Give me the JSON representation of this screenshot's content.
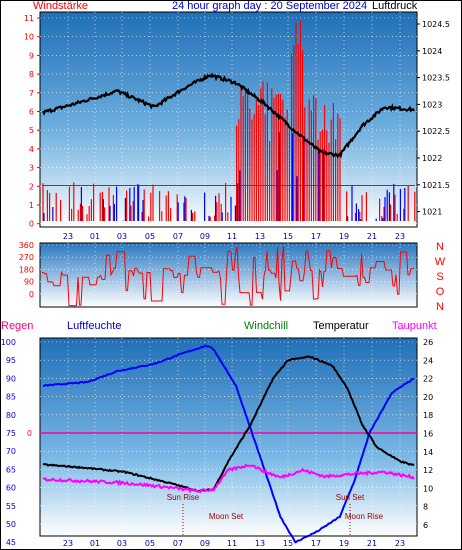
{
  "header": {
    "left_label": "Windstärke",
    "title": "24 hour graph day : 20 September 2024",
    "right_label": "Luftdruck"
  },
  "top_chart": {
    "left_ticks": [
      "11",
      "10",
      "9",
      "8",
      "7",
      "6",
      "5",
      "4",
      "3",
      "2",
      "1",
      "0"
    ],
    "right_ticks": [
      "1024.5",
      "1024",
      "1023.5",
      "1023",
      "1022.5",
      "1022",
      "1021.5",
      "1021"
    ],
    "hour_labels": [
      "23",
      "01",
      "03",
      "05",
      "07",
      "09",
      "11",
      "13",
      "15",
      "17",
      "19",
      "21",
      "23"
    ]
  },
  "direction_chart": {
    "left_ticks": [
      "360",
      "270",
      "180",
      "90",
      "0"
    ],
    "compass": [
      "N",
      "W",
      "S",
      "O",
      "N"
    ]
  },
  "bottom_header": {
    "regen": "Regen",
    "luftfeuchte": "Luftfeuchte",
    "windchill": "Windchill",
    "temperatur": "Temperatur",
    "taupunkt": "Taupunkt"
  },
  "bottom_chart": {
    "left_ticks": [
      "100",
      "95",
      "90",
      "85",
      "80",
      "75",
      "70",
      "65",
      "60",
      "55",
      "50",
      "45"
    ],
    "right_ticks": [
      "26",
      "24",
      "22",
      "20",
      "18",
      "16",
      "14",
      "12",
      "10",
      "8",
      "6"
    ],
    "rain_value": "0",
    "hour_labels": [
      "23",
      "01",
      "03",
      "05",
      "07",
      "09",
      "11",
      "13",
      "15",
      "17",
      "19",
      "21",
      "23"
    ],
    "events": {
      "sun_rise": "Sun Rise",
      "moon_set": "Moon Set",
      "sun_set": "Sun Set",
      "moon_rise": "Moon Rise"
    }
  },
  "colors": {
    "wind": "#ff0000",
    "gust": "#0000ff",
    "pressure": "#000000",
    "humidity": "#0000ff",
    "temperature": "#000000",
    "dewpoint": "#ff00ff",
    "rain": "#ff0080",
    "windchill": "#008000"
  }
}
